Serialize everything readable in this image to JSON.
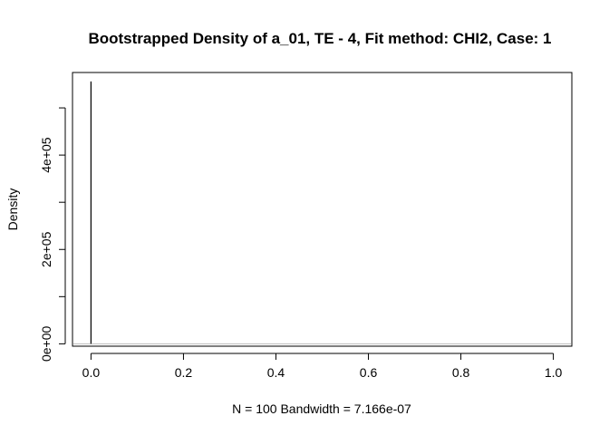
{
  "chart_data": {
    "type": "line",
    "title": "Bootstrapped Density of a_01, TE - 4, Fit method: CHI2, Case: 1",
    "xlabel": "N = 100   Bandwidth = 7.166e-07",
    "ylabel": "Density",
    "xlim": [
      -0.04,
      1.04
    ],
    "ylim": [
      -5000,
      575000
    ],
    "x_ticks": [
      0.0,
      0.2,
      0.4,
      0.6,
      0.8,
      1.0
    ],
    "x_tick_labels": [
      "0.0",
      "0.2",
      "0.4",
      "0.6",
      "0.8",
      "1.0"
    ],
    "y_ticks": [
      0,
      100000,
      200000,
      300000,
      400000,
      500000
    ],
    "y_tick_labels": [
      "0e+00",
      "",
      "2e+05",
      "",
      "4e+05",
      ""
    ],
    "series": [
      {
        "x": [
          0.0,
          0.0,
          0.0
        ],
        "y": [
          0,
          556000,
          0
        ]
      }
    ],
    "baseline": 0,
    "grid": false,
    "colors": {
      "line": "#000000",
      "baseline": "#bebebe",
      "axes": "#000000"
    }
  }
}
